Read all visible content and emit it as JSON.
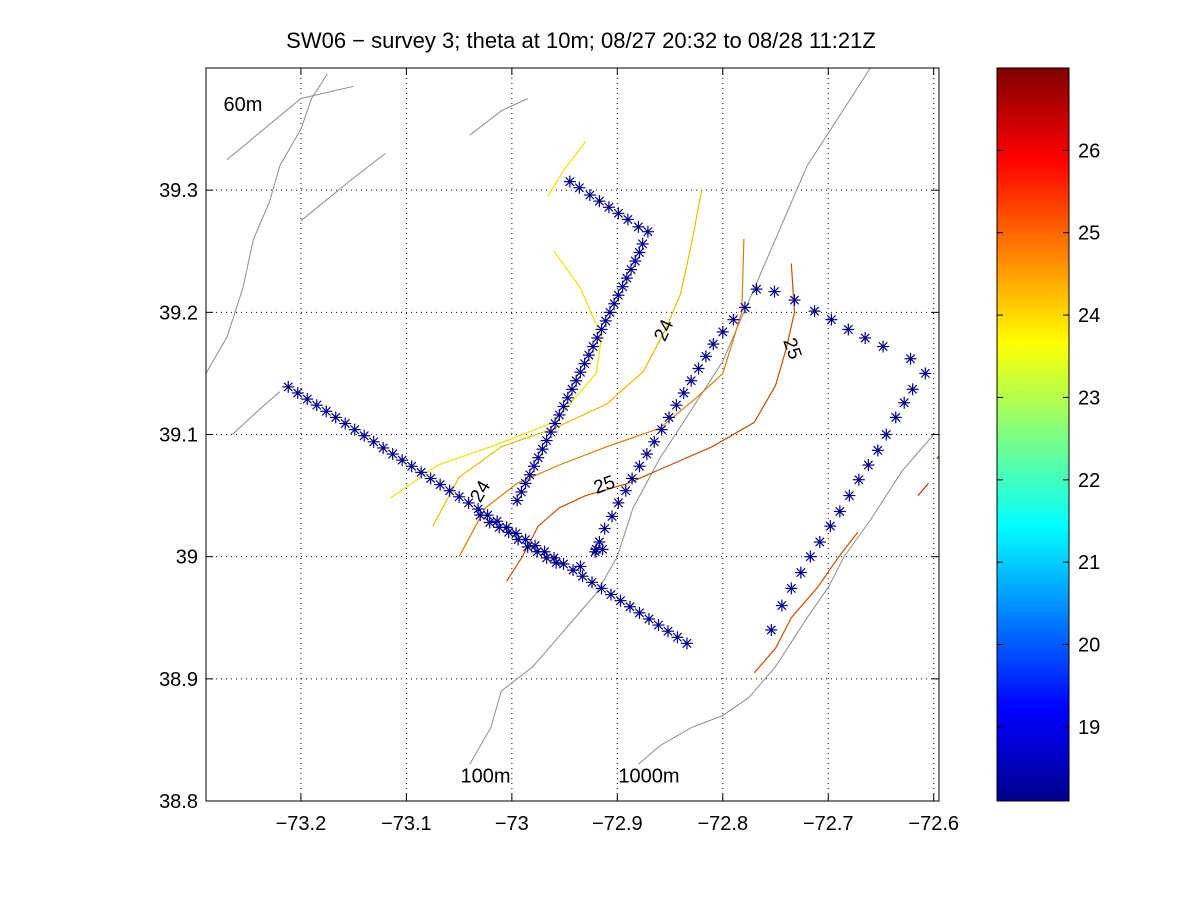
{
  "chart_data": {
    "type": "map-contour",
    "title": "SW06 − survey 3; theta at 10m; 08/27 20:32 to 08/28 11:21Z",
    "xlabel": "",
    "ylabel": "",
    "xlim": [
      -73.29,
      -72.595
    ],
    "ylim": [
      38.8,
      39.4
    ],
    "grid": true,
    "x_ticks": [
      {
        "value": -73.2,
        "label": "−73.2"
      },
      {
        "value": -73.1,
        "label": "−73.1"
      },
      {
        "value": -73.0,
        "label": "−73"
      },
      {
        "value": -72.9,
        "label": "−72.9"
      },
      {
        "value": -72.8,
        "label": "−72.8"
      },
      {
        "value": -72.7,
        "label": "−72.7"
      },
      {
        "value": -72.6,
        "label": "−72.6"
      }
    ],
    "y_ticks": [
      {
        "value": 38.8,
        "label": "38.8"
      },
      {
        "value": 38.9,
        "label": "38.9"
      },
      {
        "value": 39.0,
        "label": "39"
      },
      {
        "value": 39.1,
        "label": "39.1"
      },
      {
        "value": 39.2,
        "label": "39.2"
      },
      {
        "value": 39.3,
        "label": "39.3"
      }
    ],
    "colorbar": {
      "range": [
        18.1,
        27.0
      ],
      "ticks": [
        {
          "value": 19,
          "label": "19"
        },
        {
          "value": 20,
          "label": "20"
        },
        {
          "value": 21,
          "label": "21"
        },
        {
          "value": 22,
          "label": "22"
        },
        {
          "value": 23,
          "label": "23"
        },
        {
          "value": 24,
          "label": "24"
        },
        {
          "value": 25,
          "label": "25"
        },
        {
          "value": 26,
          "label": "26"
        }
      ],
      "colormap": "jet"
    },
    "annotations": [
      {
        "text": "60m",
        "x": -73.255,
        "y": 39.365
      },
      {
        "text": "100m",
        "x": -73.025,
        "y": 38.815
      },
      {
        "text": "1000m",
        "x": -72.87,
        "y": 38.815
      }
    ],
    "contour_labels": [
      {
        "text": "24",
        "x": -72.855,
        "y": 39.185,
        "angle": -65
      },
      {
        "text": "25",
        "x": -72.735,
        "y": 39.17,
        "angle": 70
      },
      {
        "text": "25",
        "x": -72.912,
        "y": 39.058,
        "angle": -20
      },
      {
        "text": "24",
        "x": -73.029,
        "y": 39.053,
        "angle": -60
      }
    ],
    "contours": [
      {
        "level": 23.5,
        "color": "#f5e000",
        "points": [
          [
            -72.966,
            39.295
          ],
          [
            -72.951,
            39.316
          ],
          [
            -72.93,
            39.34
          ]
        ]
      },
      {
        "level": 23.5,
        "color": "#f2e000",
        "points": [
          [
            -72.96,
            39.25
          ],
          [
            -72.935,
            39.22
          ],
          [
            -72.915,
            39.18
          ],
          [
            -72.92,
            39.15
          ],
          [
            -72.96,
            39.11
          ],
          [
            -73.02,
            39.09
          ],
          [
            -73.07,
            39.075
          ],
          [
            -73.115,
            39.048
          ]
        ]
      },
      {
        "level": 24.0,
        "color": "#e8bc00",
        "points": [
          [
            -72.82,
            39.3
          ],
          [
            -72.83,
            39.255
          ],
          [
            -72.84,
            39.215
          ],
          [
            -72.855,
            39.185
          ],
          [
            -72.875,
            39.152
          ],
          [
            -72.91,
            39.125
          ],
          [
            -72.96,
            39.105
          ],
          [
            -73.01,
            39.09
          ],
          [
            -73.05,
            39.065
          ],
          [
            -73.075,
            39.025
          ]
        ]
      },
      {
        "level": 24.5,
        "color": "#d88000",
        "points": [
          [
            -72.78,
            39.26
          ],
          [
            -72.782,
            39.2
          ],
          [
            -72.8,
            39.15
          ],
          [
            -72.825,
            39.13
          ],
          [
            -72.86,
            39.105
          ],
          [
            -72.91,
            39.09
          ],
          [
            -72.955,
            39.075
          ],
          [
            -72.995,
            39.06
          ],
          [
            -73.025,
            39.04
          ],
          [
            -73.05,
            39.0
          ]
        ]
      },
      {
        "level": 25.0,
        "color": "#c85000",
        "points": [
          [
            -72.735,
            39.24
          ],
          [
            -72.732,
            39.2
          ],
          [
            -72.74,
            39.17
          ],
          [
            -72.75,
            39.14
          ],
          [
            -72.77,
            39.11
          ],
          [
            -72.81,
            39.09
          ],
          [
            -72.85,
            39.075
          ],
          [
            -72.89,
            39.06
          ],
          [
            -72.93,
            39.05
          ],
          [
            -72.955,
            39.04
          ],
          [
            -72.975,
            39.025
          ],
          [
            -72.99,
            39.0
          ],
          [
            -73.005,
            38.98
          ]
        ]
      },
      {
        "level": 25.0,
        "color": "#c85000",
        "points": [
          [
            -72.77,
            38.905
          ],
          [
            -72.75,
            38.925
          ],
          [
            -72.735,
            38.95
          ],
          [
            -72.71,
            38.975
          ],
          [
            -72.69,
            39.0
          ],
          [
            -72.672,
            39.02
          ]
        ]
      },
      {
        "level": 25.5,
        "color": "#d82000",
        "points": [
          [
            -72.615,
            39.05
          ],
          [
            -72.605,
            39.06
          ]
        ]
      },
      {
        "level": 25.5,
        "color": "#d82000",
        "points": [
          [
            -72.597,
            39.08
          ],
          [
            -72.59,
            39.088
          ]
        ]
      }
    ],
    "bathymetry": [
      {
        "label": "60m",
        "points": [
          [
            -73.29,
            39.15
          ],
          [
            -73.27,
            39.18
          ],
          [
            -73.255,
            39.22
          ],
          [
            -73.245,
            39.26
          ],
          [
            -73.23,
            39.29
          ],
          [
            -73.22,
            39.32
          ],
          [
            -73.2,
            39.35
          ],
          [
            -73.19,
            39.375
          ],
          [
            -73.175,
            39.395
          ]
        ]
      },
      {
        "label": "1000m",
        "points": [
          [
            -72.66,
            39.4
          ],
          [
            -72.69,
            39.36
          ],
          [
            -72.72,
            39.32
          ],
          [
            -72.745,
            39.27
          ],
          [
            -72.76,
            39.24
          ],
          [
            -72.78,
            39.2
          ],
          [
            -72.8,
            39.16
          ],
          [
            -72.83,
            39.12
          ],
          [
            -72.86,
            39.08
          ],
          [
            -72.885,
            39.04
          ],
          [
            -72.9,
            39.0
          ],
          [
            -72.92,
            38.97
          ],
          [
            -72.95,
            38.94
          ],
          [
            -72.98,
            38.91
          ],
          [
            -73.01,
            38.89
          ],
          [
            -73.02,
            38.86
          ],
          [
            -73.04,
            38.83
          ]
        ]
      },
      {
        "label": "",
        "points": [
          [
            -72.6,
            39.1
          ],
          [
            -72.63,
            39.07
          ],
          [
            -72.66,
            39.03
          ],
          [
            -72.685,
            39.0
          ],
          [
            -72.7,
            38.975
          ],
          [
            -72.72,
            38.95
          ],
          [
            -72.735,
            38.93
          ],
          [
            -72.75,
            38.91
          ],
          [
            -72.775,
            38.885
          ],
          [
            -72.8,
            38.87
          ],
          [
            -72.83,
            38.86
          ],
          [
            -72.86,
            38.845
          ],
          [
            -72.88,
            38.83
          ]
        ]
      },
      {
        "label": "",
        "points": [
          [
            -73.27,
            39.325
          ],
          [
            -73.2,
            39.375
          ],
          [
            -73.15,
            39.385
          ]
        ]
      },
      {
        "label": "",
        "points": [
          [
            -73.2,
            39.275
          ],
          [
            -73.15,
            39.31
          ],
          [
            -73.12,
            39.33
          ]
        ]
      },
      {
        "label": "",
        "points": [
          [
            -73.04,
            39.345
          ],
          [
            -73.01,
            39.365
          ],
          [
            -72.985,
            39.375
          ]
        ]
      },
      {
        "label": "",
        "points": [
          [
            -73.265,
            39.1
          ],
          [
            -73.24,
            39.12
          ],
          [
            -73.22,
            39.135
          ]
        ]
      }
    ],
    "series": [
      {
        "name": "",
        "marker": "asterisk",
        "color": "#00008f",
        "points": [
          [
            -72.945,
            39.307
          ],
          [
            -72.936,
            39.302
          ],
          [
            -72.926,
            39.296
          ],
          [
            -72.917,
            39.291
          ],
          [
            -72.908,
            39.286
          ],
          [
            -72.899,
            39.281
          ],
          [
            -72.89,
            39.276
          ],
          [
            -72.88,
            39.27
          ],
          [
            -72.871,
            39.266
          ],
          [
            -72.876,
            39.256
          ],
          [
            -72.879,
            39.249
          ],
          [
            -72.883,
            39.242
          ],
          [
            -72.887,
            39.235
          ],
          [
            -72.891,
            39.228
          ],
          [
            -72.895,
            39.221
          ],
          [
            -72.899,
            39.214
          ],
          [
            -72.903,
            39.207
          ],
          [
            -72.907,
            39.2
          ],
          [
            -72.911,
            39.193
          ],
          [
            -72.915,
            39.186
          ],
          [
            -72.919,
            39.179
          ],
          [
            -72.923,
            39.172
          ],
          [
            -72.927,
            39.165
          ],
          [
            -72.931,
            39.158
          ],
          [
            -72.935,
            39.151
          ],
          [
            -72.939,
            39.144
          ],
          [
            -72.943,
            39.137
          ],
          [
            -72.947,
            39.13
          ],
          [
            -72.951,
            39.123
          ],
          [
            -72.955,
            39.116
          ],
          [
            -72.959,
            39.109
          ],
          [
            -72.963,
            39.102
          ],
          [
            -72.967,
            39.095
          ],
          [
            -72.971,
            39.088
          ],
          [
            -72.975,
            39.081
          ],
          [
            -72.979,
            39.074
          ],
          [
            -72.983,
            39.067
          ],
          [
            -72.987,
            39.06
          ],
          [
            -72.991,
            39.053
          ],
          [
            -72.995,
            39.046
          ],
          [
            -73.212,
            39.139
          ],
          [
            -73.203,
            39.134
          ],
          [
            -73.194,
            39.129
          ],
          [
            -73.185,
            39.124
          ],
          [
            -73.176,
            39.119
          ],
          [
            -73.167,
            39.114
          ],
          [
            -73.158,
            39.109
          ],
          [
            -73.149,
            39.104
          ],
          [
            -73.14,
            39.099
          ],
          [
            -73.131,
            39.094
          ],
          [
            -73.122,
            39.089
          ],
          [
            -73.113,
            39.084
          ],
          [
            -73.104,
            39.079
          ],
          [
            -73.095,
            39.074
          ],
          [
            -73.086,
            39.069
          ],
          [
            -73.077,
            39.064
          ],
          [
            -73.068,
            39.059
          ],
          [
            -73.059,
            39.054
          ],
          [
            -73.05,
            39.049
          ],
          [
            -73.041,
            39.044
          ],
          [
            -73.032,
            39.039
          ],
          [
            -73.023,
            39.034
          ],
          [
            -73.014,
            39.029
          ],
          [
            -73.005,
            39.024
          ],
          [
            -72.996,
            39.019
          ],
          [
            -72.987,
            39.014
          ],
          [
            -72.978,
            39.009
          ],
          [
            -72.969,
            39.004
          ],
          [
            -72.96,
            38.999
          ],
          [
            -72.951,
            38.994
          ],
          [
            -72.942,
            38.989
          ],
          [
            -72.933,
            38.984
          ],
          [
            -72.924,
            38.979
          ],
          [
            -72.915,
            38.974
          ],
          [
            -72.906,
            38.969
          ],
          [
            -72.897,
            38.964
          ],
          [
            -72.888,
            38.959
          ],
          [
            -72.879,
            38.954
          ],
          [
            -72.87,
            38.949
          ],
          [
            -72.861,
            38.944
          ],
          [
            -72.852,
            38.939
          ],
          [
            -72.843,
            38.934
          ],
          [
            -72.834,
            38.929
          ],
          [
            -73.03,
            39.034
          ],
          [
            -73.021,
            39.028
          ],
          [
            -73.012,
            39.024
          ],
          [
            -73.003,
            39.02
          ],
          [
            -72.994,
            39.014
          ],
          [
            -72.985,
            39.008
          ],
          [
            -72.976,
            39.004
          ],
          [
            -72.967,
            38.999
          ],
          [
            -72.958,
            38.995
          ],
          [
            -72.935,
            38.992
          ],
          [
            -72.921,
            39.004
          ],
          [
            -72.917,
            39.012
          ],
          [
            -72.912,
            39.023
          ],
          [
            -72.905,
            39.033
          ],
          [
            -72.899,
            39.044
          ],
          [
            -72.892,
            39.054
          ],
          [
            -72.886,
            39.064
          ],
          [
            -72.879,
            39.074
          ],
          [
            -72.872,
            39.084
          ],
          [
            -72.865,
            39.094
          ],
          [
            -72.858,
            39.104
          ],
          [
            -72.851,
            39.114
          ],
          [
            -72.844,
            39.124
          ],
          [
            -72.837,
            39.134
          ],
          [
            -72.83,
            39.144
          ],
          [
            -72.823,
            39.154
          ],
          [
            -72.816,
            39.164
          ],
          [
            -72.809,
            39.174
          ],
          [
            -72.8,
            39.184
          ],
          [
            -72.79,
            39.194
          ],
          [
            -72.779,
            39.204
          ],
          [
            -72.768,
            39.219
          ],
          [
            -72.751,
            39.217
          ],
          [
            -72.732,
            39.21
          ],
          [
            -72.713,
            39.201
          ],
          [
            -72.697,
            39.194
          ],
          [
            -72.681,
            39.186
          ],
          [
            -72.665,
            39.179
          ],
          [
            -72.648,
            39.172
          ],
          [
            -72.622,
            39.162
          ],
          [
            -72.608,
            39.15
          ],
          [
            -72.62,
            39.137
          ],
          [
            -72.628,
            39.126
          ],
          [
            -72.636,
            39.114
          ],
          [
            -72.645,
            39.1
          ],
          [
            -72.653,
            39.087
          ],
          [
            -72.662,
            39.075
          ],
          [
            -72.671,
            39.063
          ],
          [
            -72.68,
            39.05
          ],
          [
            -72.689,
            39.037
          ],
          [
            -72.698,
            39.025
          ],
          [
            -72.708,
            39.012
          ],
          [
            -72.717,
            39.0
          ],
          [
            -72.726,
            38.987
          ],
          [
            -72.735,
            38.974
          ],
          [
            -72.744,
            38.96
          ],
          [
            -72.754,
            38.94
          ],
          [
            -72.92,
            39.006
          ],
          [
            -72.914,
            39.006
          ]
        ]
      }
    ]
  }
}
